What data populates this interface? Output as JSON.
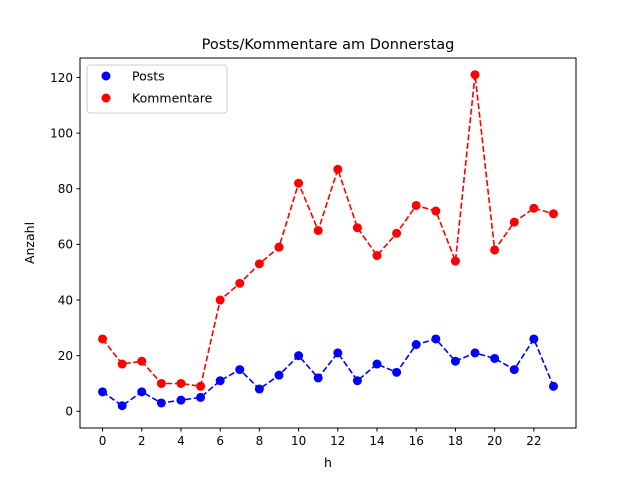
{
  "chart_data": {
    "type": "line",
    "title": "Posts/Kommentare am Donnerstag",
    "xlabel": "h",
    "ylabel": "Anzahl",
    "x": [
      0,
      1,
      2,
      3,
      4,
      5,
      6,
      7,
      8,
      9,
      10,
      11,
      12,
      13,
      14,
      15,
      16,
      17,
      18,
      19,
      20,
      21,
      22,
      23
    ],
    "xticks": [
      0,
      2,
      4,
      6,
      8,
      10,
      12,
      14,
      16,
      18,
      20,
      22
    ],
    "yticks": [
      0,
      20,
      40,
      60,
      80,
      100,
      120
    ],
    "xlim": [
      -1.15,
      24.15
    ],
    "ylim": [
      -6.0,
      127.0
    ],
    "grid": false,
    "legend_position": "upper left",
    "series": [
      {
        "name": "Posts",
        "color": "#0000ff",
        "linestyle": "dashed",
        "marker": "o",
        "values": [
          7,
          2,
          7,
          3,
          4,
          5,
          11,
          15,
          8,
          13,
          20,
          12,
          21,
          11,
          17,
          14,
          24,
          26,
          18,
          21,
          19,
          15,
          26,
          9
        ]
      },
      {
        "name": "Kommentare",
        "color": "#ff0000",
        "linestyle": "dashed",
        "marker": "o",
        "values": [
          26,
          17,
          18,
          10,
          10,
          9,
          40,
          46,
          53,
          59,
          82,
          65,
          87,
          66,
          56,
          64,
          74,
          72,
          54,
          121,
          58,
          68,
          73,
          71
        ]
      }
    ]
  }
}
